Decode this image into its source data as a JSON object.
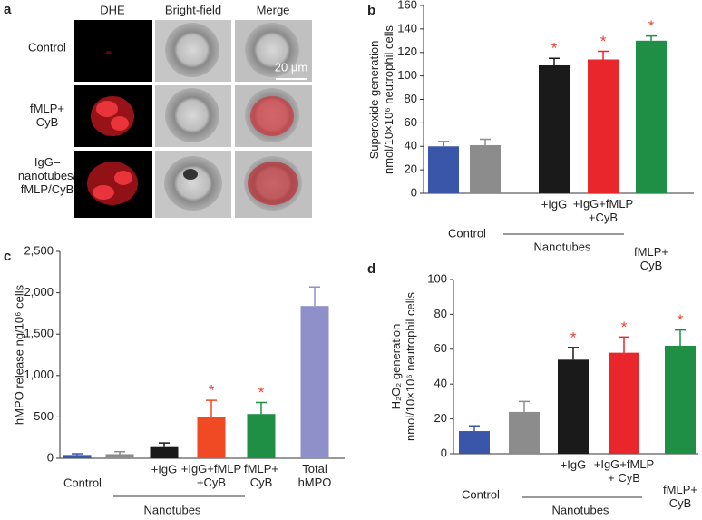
{
  "panel_a": {
    "label": "a",
    "columns": [
      "DHE",
      "Bright-field",
      "Merge"
    ],
    "rows": [
      "Control",
      "fMLP+\nCyB",
      "IgG–\nnanotubes/\nfMLP/CyB"
    ],
    "scale_bar": "20 μm"
  },
  "chart_data": [
    {
      "type": "bar",
      "label": "b",
      "y_label": "Superoxide generation\nnmol/10×10⁶ neutrophil cells",
      "categories": [
        null,
        null,
        "+IgG",
        "+IgG+fMLP\n+CyB",
        "fMLP+\nCyB"
      ],
      "values": [
        40,
        41,
        109,
        114,
        130
      ],
      "errors": [
        4,
        5,
        6,
        7,
        4
      ],
      "colors": [
        "#3a56a8",
        "#8c8c8c",
        "#1a1a1a",
        "#e8262b",
        "#1f8f45"
      ],
      "significant": [
        false,
        false,
        true,
        true,
        true
      ],
      "star": "*",
      "group_labels": [
        "Control",
        "Nanotubes"
      ],
      "ylim": [
        0,
        160
      ],
      "yticks": [
        0,
        20,
        40,
        60,
        80,
        100,
        120,
        140,
        160
      ]
    },
    {
      "type": "bar",
      "label": "c",
      "y_label": "hMPO release ng/10⁶ cells",
      "categories": [
        null,
        null,
        "+IgG",
        "+IgG+fMLP\n+CyB",
        "fMLP+\nCyB",
        "Total\nhMPO"
      ],
      "values": [
        40,
        50,
        135,
        500,
        535,
        1840
      ],
      "errors": [
        15,
        30,
        50,
        200,
        140,
        230
      ],
      "colors": [
        "#3a56a8",
        "#8c8c8c",
        "#1a1a1a",
        "#f04a25",
        "#1f8f45",
        "#8f8fc9"
      ],
      "significant": [
        false,
        false,
        false,
        true,
        true,
        false
      ],
      "star": "*",
      "group_labels": [
        "Control",
        "Nanotubes"
      ],
      "ylim": [
        0,
        2500
      ],
      "yticks": [
        0,
        500,
        {
          "value": 1000,
          "label": "1,000"
        },
        {
          "value": 1500,
          "label": "1,500"
        },
        {
          "value": 2000,
          "label": "2,000"
        },
        {
          "value": 2500,
          "label": "2,500"
        }
      ]
    },
    {
      "type": "bar",
      "label": "d",
      "y_label": "H₂O₂ generation\nnmol/10×10⁶ neutrophil cells",
      "categories": [
        null,
        null,
        "+IgG",
        "+IgG+fMLP\n+ CyB",
        "fMLP+\nCyB"
      ],
      "values": [
        13,
        24,
        54,
        58,
        62
      ],
      "errors": [
        3,
        6,
        7,
        9,
        9
      ],
      "colors": [
        "#3a56a8",
        "#8c8c8c",
        "#1a1a1a",
        "#e8262b",
        "#1f8f45"
      ],
      "significant": [
        false,
        false,
        true,
        true,
        true
      ],
      "star": "*",
      "group_labels": [
        "Control",
        "Nanotubes"
      ],
      "ylim": [
        0,
        100
      ],
      "yticks": [
        0,
        20,
        40,
        60,
        80,
        100
      ]
    }
  ]
}
